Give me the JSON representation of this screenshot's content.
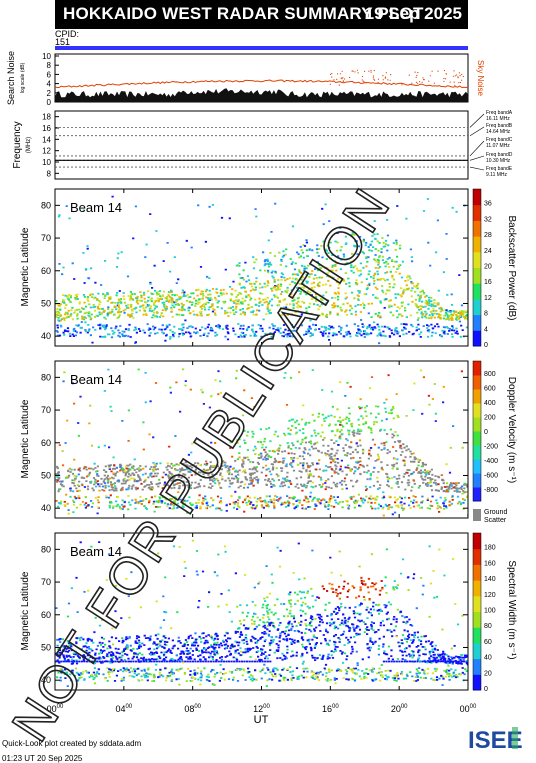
{
  "header": {
    "title": "HOKKAIDO WEST RADAR SUMMARY PLOT",
    "date": "19 Sep 2025",
    "cpid_label": "CPID:",
    "cpid_value": "151"
  },
  "noise_panel": {
    "ylabel": "Search Noise",
    "sublabel": "log scale (dB)",
    "ticks": [
      "0",
      "2",
      "4",
      "6",
      "8",
      "10"
    ],
    "side_label": "Sky Noise",
    "colors": {
      "search": "#000000",
      "sky": "#e04000"
    }
  },
  "frequency_panel": {
    "ylabel": "Frequency",
    "unit": "(MHz)",
    "ticks": [
      "8",
      "10",
      "12",
      "14",
      "16",
      "18"
    ],
    "bands": [
      {
        "label": "Freq bandA",
        "value": "16.11 MHz"
      },
      {
        "label": "Freq bandB",
        "value": "14.64 MHz"
      },
      {
        "label": "Freq bandC",
        "value": "11.07 MHz"
      },
      {
        "label": "Freq bandD",
        "value": "10.30 MHz"
      },
      {
        "label": "Freq bandE",
        "value": "9.11 MHz"
      }
    ]
  },
  "panels": [
    {
      "beam": "Beam 14",
      "ylabel": "Magnetic Latitude",
      "cbar_label": "Backscatter Power (dB)",
      "cbar_ticks": [
        "0",
        "4",
        "8",
        "12",
        "16",
        "20",
        "24",
        "28",
        "32",
        "36"
      ],
      "cbar_colors": [
        "#1010ff",
        "#2080ff",
        "#20d0d0",
        "#20e060",
        "#a0e020",
        "#e0e020",
        "#f0b000",
        "#f07000",
        "#e03000",
        "#c00000"
      ]
    },
    {
      "beam": "Beam 14",
      "ylabel": "Magnetic Latitude",
      "cbar_label": "Doppler Velocity (m s⁻¹)",
      "cbar_ticks": [
        "800",
        "600",
        "400",
        "200",
        "0",
        "-200",
        "-400",
        "-600",
        "-800"
      ],
      "cbar_colors": [
        "#2020ff",
        "#2080ff",
        "#20c0ff",
        "#20e0a0",
        "#40e040",
        "#a0e020",
        "#e0e020",
        "#f0a000",
        "#f06000",
        "#e02000"
      ],
      "ground_scatter": "Ground Scatter"
    },
    {
      "beam": "Beam 14",
      "ylabel": "Magnetic Latitude",
      "cbar_label": "Spectral Width (m s⁻¹)",
      "cbar_ticks": [
        "0",
        "20",
        "40",
        "60",
        "80",
        "100",
        "120",
        "140",
        "160",
        "180"
      ],
      "cbar_colors": [
        "#1010ff",
        "#2080ff",
        "#20d0d0",
        "#20e060",
        "#a0e020",
        "#e0e020",
        "#f0b000",
        "#f07000",
        "#e03000",
        "#c00000"
      ]
    }
  ],
  "yaxis_ticks": [
    "40",
    "50",
    "60",
    "70",
    "80"
  ],
  "xaxis": {
    "label": "UT",
    "ticks": [
      {
        "h": "00",
        "m": "00"
      },
      {
        "h": "04",
        "m": "00"
      },
      {
        "h": "08",
        "m": "00"
      },
      {
        "h": "12",
        "m": "00"
      },
      {
        "h": "16",
        "m": "00"
      },
      {
        "h": "20",
        "m": "00"
      },
      {
        "h": "00",
        "m": "00"
      }
    ]
  },
  "watermark": "NOT FOR PUBLICATION",
  "footer": {
    "line1": "Quick-Look plot created by sddata.adm",
    "line2": "01:23 UT 20 Sep 2025"
  },
  "logo": {
    "text": "ISEE",
    "colors": [
      "#1e4aa0",
      "#2aa860"
    ]
  },
  "chart_data": {
    "type": "heatmap",
    "title": "HOKKAIDO WEST RADAR SUMMARY PLOT",
    "x": {
      "label": "UT",
      "range_hours": [
        0,
        24
      ],
      "ticks": [
        "00:00",
        "04:00",
        "08:00",
        "12:00",
        "16:00",
        "20:00",
        "00:00"
      ]
    },
    "y": {
      "label": "Magnetic Latitude",
      "range": [
        37,
        85
      ],
      "ticks": [
        40,
        50,
        60,
        70,
        80
      ]
    },
    "noise": {
      "search_noise_ylim": [
        0,
        10
      ],
      "sky_noise_level_approx": 3.5,
      "search_noise_level_approx": 1.5
    },
    "frequency_bands_mhz": [
      16.11,
      14.64,
      11.07,
      10.3,
      9.11
    ],
    "panels": [
      {
        "quantity": "Backscatter Power (dB)",
        "range": [
          0,
          36
        ]
      },
      {
        "quantity": "Doppler Velocity (m s⁻¹)",
        "range": [
          -800,
          800
        ]
      },
      {
        "quantity": "Spectral Width (m s⁻¹)",
        "range": [
          0,
          180
        ]
      }
    ]
  }
}
